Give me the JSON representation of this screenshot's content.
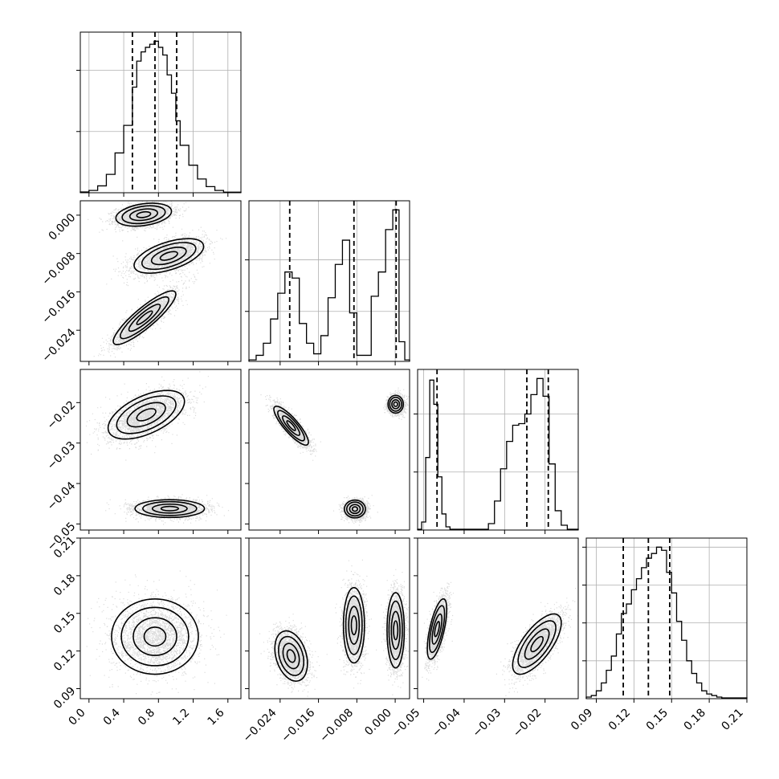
{
  "chart_data": {
    "type": "corner",
    "params": [
      {
        "ticks": [
          0.0,
          0.4,
          0.8,
          1.2,
          1.6
        ],
        "tick_labels": [
          "0.0",
          "0.4",
          "0.8",
          "1.2",
          "1.6"
        ],
        "range": [
          -0.1,
          1.75
        ]
      },
      {
        "ticks": [
          -0.024,
          -0.016,
          -0.008,
          0.0
        ],
        "tick_labels": [
          "−0.024",
          "−0.016",
          "−0.008",
          "0.000"
        ],
        "range": [
          -0.0305,
          0.003
        ]
      },
      {
        "ticks": [
          -0.05,
          -0.04,
          -0.03,
          -0.02
        ],
        "tick_labels": [
          "−0.05",
          "−0.04",
          "−0.03",
          "−0.02"
        ],
        "range": [
          -0.0515,
          -0.0118
        ]
      },
      {
        "ticks": [
          0.09,
          0.12,
          0.15,
          0.18,
          0.21
        ],
        "tick_labels": [
          "0.09",
          "0.12",
          "0.15",
          "0.18",
          "0.21"
        ],
        "range": [
          0.082,
          0.21
        ]
      }
    ],
    "diagonal": [
      {
        "param": 0,
        "bin_edges": [
          -0.1,
          0.0,
          0.1,
          0.2,
          0.3,
          0.4,
          0.5,
          0.55,
          0.6,
          0.65,
          0.7,
          0.75,
          0.8,
          0.85,
          0.9,
          0.95,
          1.0,
          1.05,
          1.15,
          1.25,
          1.35,
          1.45,
          1.55,
          1.75
        ],
        "counts": [
          0.005,
          0.015,
          0.045,
          0.12,
          0.26,
          0.44,
          0.69,
          0.86,
          0.92,
          0.95,
          0.97,
          0.99,
          0.95,
          0.9,
          0.77,
          0.65,
          0.47,
          0.31,
          0.18,
          0.09,
          0.04,
          0.015,
          0.004
        ],
        "quantiles": [
          0.5,
          0.76,
          1.01
        ],
        "yticks": [
          0.4,
          0.8
        ]
      },
      {
        "param": 1,
        "bin_edges": [
          -0.0305,
          -0.029,
          -0.0275,
          -0.026,
          -0.0245,
          -0.023,
          -0.0215,
          -0.02,
          -0.0185,
          -0.017,
          -0.0155,
          -0.014,
          -0.0125,
          -0.011,
          -0.0095,
          -0.008,
          -0.0065,
          -0.005,
          -0.0035,
          -0.002,
          -0.0005,
          0.0008,
          0.002,
          0.003
        ],
        "counts": [
          0.01,
          0.04,
          0.12,
          0.28,
          0.45,
          0.59,
          0.55,
          0.25,
          0.12,
          0.05,
          0.17,
          0.42,
          0.64,
          0.8,
          0.32,
          0.04,
          0.04,
          0.43,
          0.59,
          0.87,
          1.0,
          0.13,
          0.01
        ],
        "quantiles": [
          -0.022,
          -0.0086,
          0.0002
        ],
        "yticks": [
          0.33,
          0.67
        ]
      },
      {
        "param": 2,
        "bin_edges": [
          -0.0515,
          -0.0505,
          -0.0495,
          -0.0485,
          -0.0475,
          -0.0465,
          -0.0455,
          -0.0445,
          -0.0435,
          -0.0425,
          -0.034,
          -0.0325,
          -0.031,
          -0.0295,
          -0.028,
          -0.0265,
          -0.025,
          -0.0235,
          -0.022,
          -0.0205,
          -0.019,
          -0.0175,
          -0.016,
          -0.0145,
          -0.0118
        ],
        "counts": [
          0.005,
          0.05,
          0.45,
          0.93,
          0.78,
          0.33,
          0.1,
          0.02,
          0.005,
          0.005,
          0.04,
          0.18,
          0.38,
          0.55,
          0.65,
          0.66,
          0.72,
          0.84,
          0.94,
          0.83,
          0.41,
          0.12,
          0.03,
          0.005
        ],
        "quantiles": [
          -0.0467,
          -0.0245,
          -0.0192
        ],
        "yticks": [
          0.36,
          0.72
        ]
      },
      {
        "param": 3,
        "bin_edges": [
          0.082,
          0.086,
          0.09,
          0.094,
          0.098,
          0.102,
          0.106,
          0.11,
          0.114,
          0.118,
          0.122,
          0.126,
          0.13,
          0.134,
          0.138,
          0.142,
          0.146,
          0.15,
          0.154,
          0.158,
          0.162,
          0.166,
          0.17,
          0.174,
          0.178,
          0.182,
          0.186,
          0.19,
          0.21
        ],
        "counts": [
          0.01,
          0.02,
          0.05,
          0.1,
          0.18,
          0.27,
          0.41,
          0.54,
          0.6,
          0.69,
          0.76,
          0.83,
          0.89,
          0.92,
          0.96,
          0.94,
          0.8,
          0.67,
          0.49,
          0.37,
          0.24,
          0.16,
          0.1,
          0.05,
          0.03,
          0.02,
          0.01,
          0.005
        ],
        "quantiles": [
          0.1115,
          0.1315,
          0.1485
        ],
        "yticks": [
          0.24,
          0.48,
          0.72,
          0.96
        ]
      }
    ],
    "pairs": [
      {
        "row": 1,
        "col": 0,
        "clusters": [
          {
            "mean": [
              0.63,
              0.0001
            ],
            "std": [
              0.16,
              0.0012
            ],
            "rho": 0.3
          },
          {
            "mean": [
              0.92,
              -0.0085
            ],
            "std": [
              0.2,
              0.0018
            ],
            "rho": 0.55
          },
          {
            "mean": [
              0.64,
              -0.0214
            ],
            "std": [
              0.18,
              0.0028
            ],
            "rho": 0.88
          }
        ]
      },
      {
        "row": 2,
        "col": 0,
        "clusters": [
          {
            "mean": [
              0.66,
              -0.023
            ],
            "std": [
              0.22,
              0.003
            ],
            "rho": 0.55
          },
          {
            "mean": [
              0.93,
              -0.0462
            ],
            "std": [
              0.2,
              0.0011
            ],
            "rho": 0.0
          }
        ]
      },
      {
        "row": 2,
        "col": 1,
        "clusters": [
          {
            "mean": [
              -0.0217,
              -0.0257
            ],
            "std": [
              0.0018,
              0.0024
            ],
            "rho": -0.85
          },
          {
            "mean": [
              -0.0084,
              -0.0463
            ],
            "std": [
              0.0011,
              0.0011
            ],
            "rho": 0.0
          },
          {
            "mean": [
              0.0001,
              -0.0204
            ],
            "std": [
              0.0008,
              0.0011
            ],
            "rho": 0.0
          }
        ]
      },
      {
        "row": 3,
        "col": 0,
        "clusters": [
          {
            "mean": [
              0.76,
              0.1315
            ],
            "std": [
              0.25,
              0.015
            ],
            "rho": 0.0
          }
        ]
      },
      {
        "row": 3,
        "col": 1,
        "clusters": [
          {
            "mean": [
              -0.0217,
              0.116
            ],
            "std": [
              0.0017,
              0.01
            ],
            "rho": -0.3
          },
          {
            "mean": [
              -0.0086,
              0.1405
            ],
            "std": [
              0.0011,
              0.015
            ],
            "rho": 0.0
          },
          {
            "mean": [
              0.0001,
              0.1365
            ],
            "std": [
              0.0009,
              0.015
            ],
            "rho": 0.0
          }
        ]
      },
      {
        "row": 3,
        "col": 2,
        "clusters": [
          {
            "mean": [
              -0.0467,
              0.1375
            ],
            "std": [
              0.0012,
              0.012
            ],
            "rho": 0.65
          },
          {
            "mean": [
              -0.022,
              0.1255
            ],
            "std": [
              0.003,
              0.012
            ],
            "rho": 0.7
          }
        ]
      }
    ]
  }
}
